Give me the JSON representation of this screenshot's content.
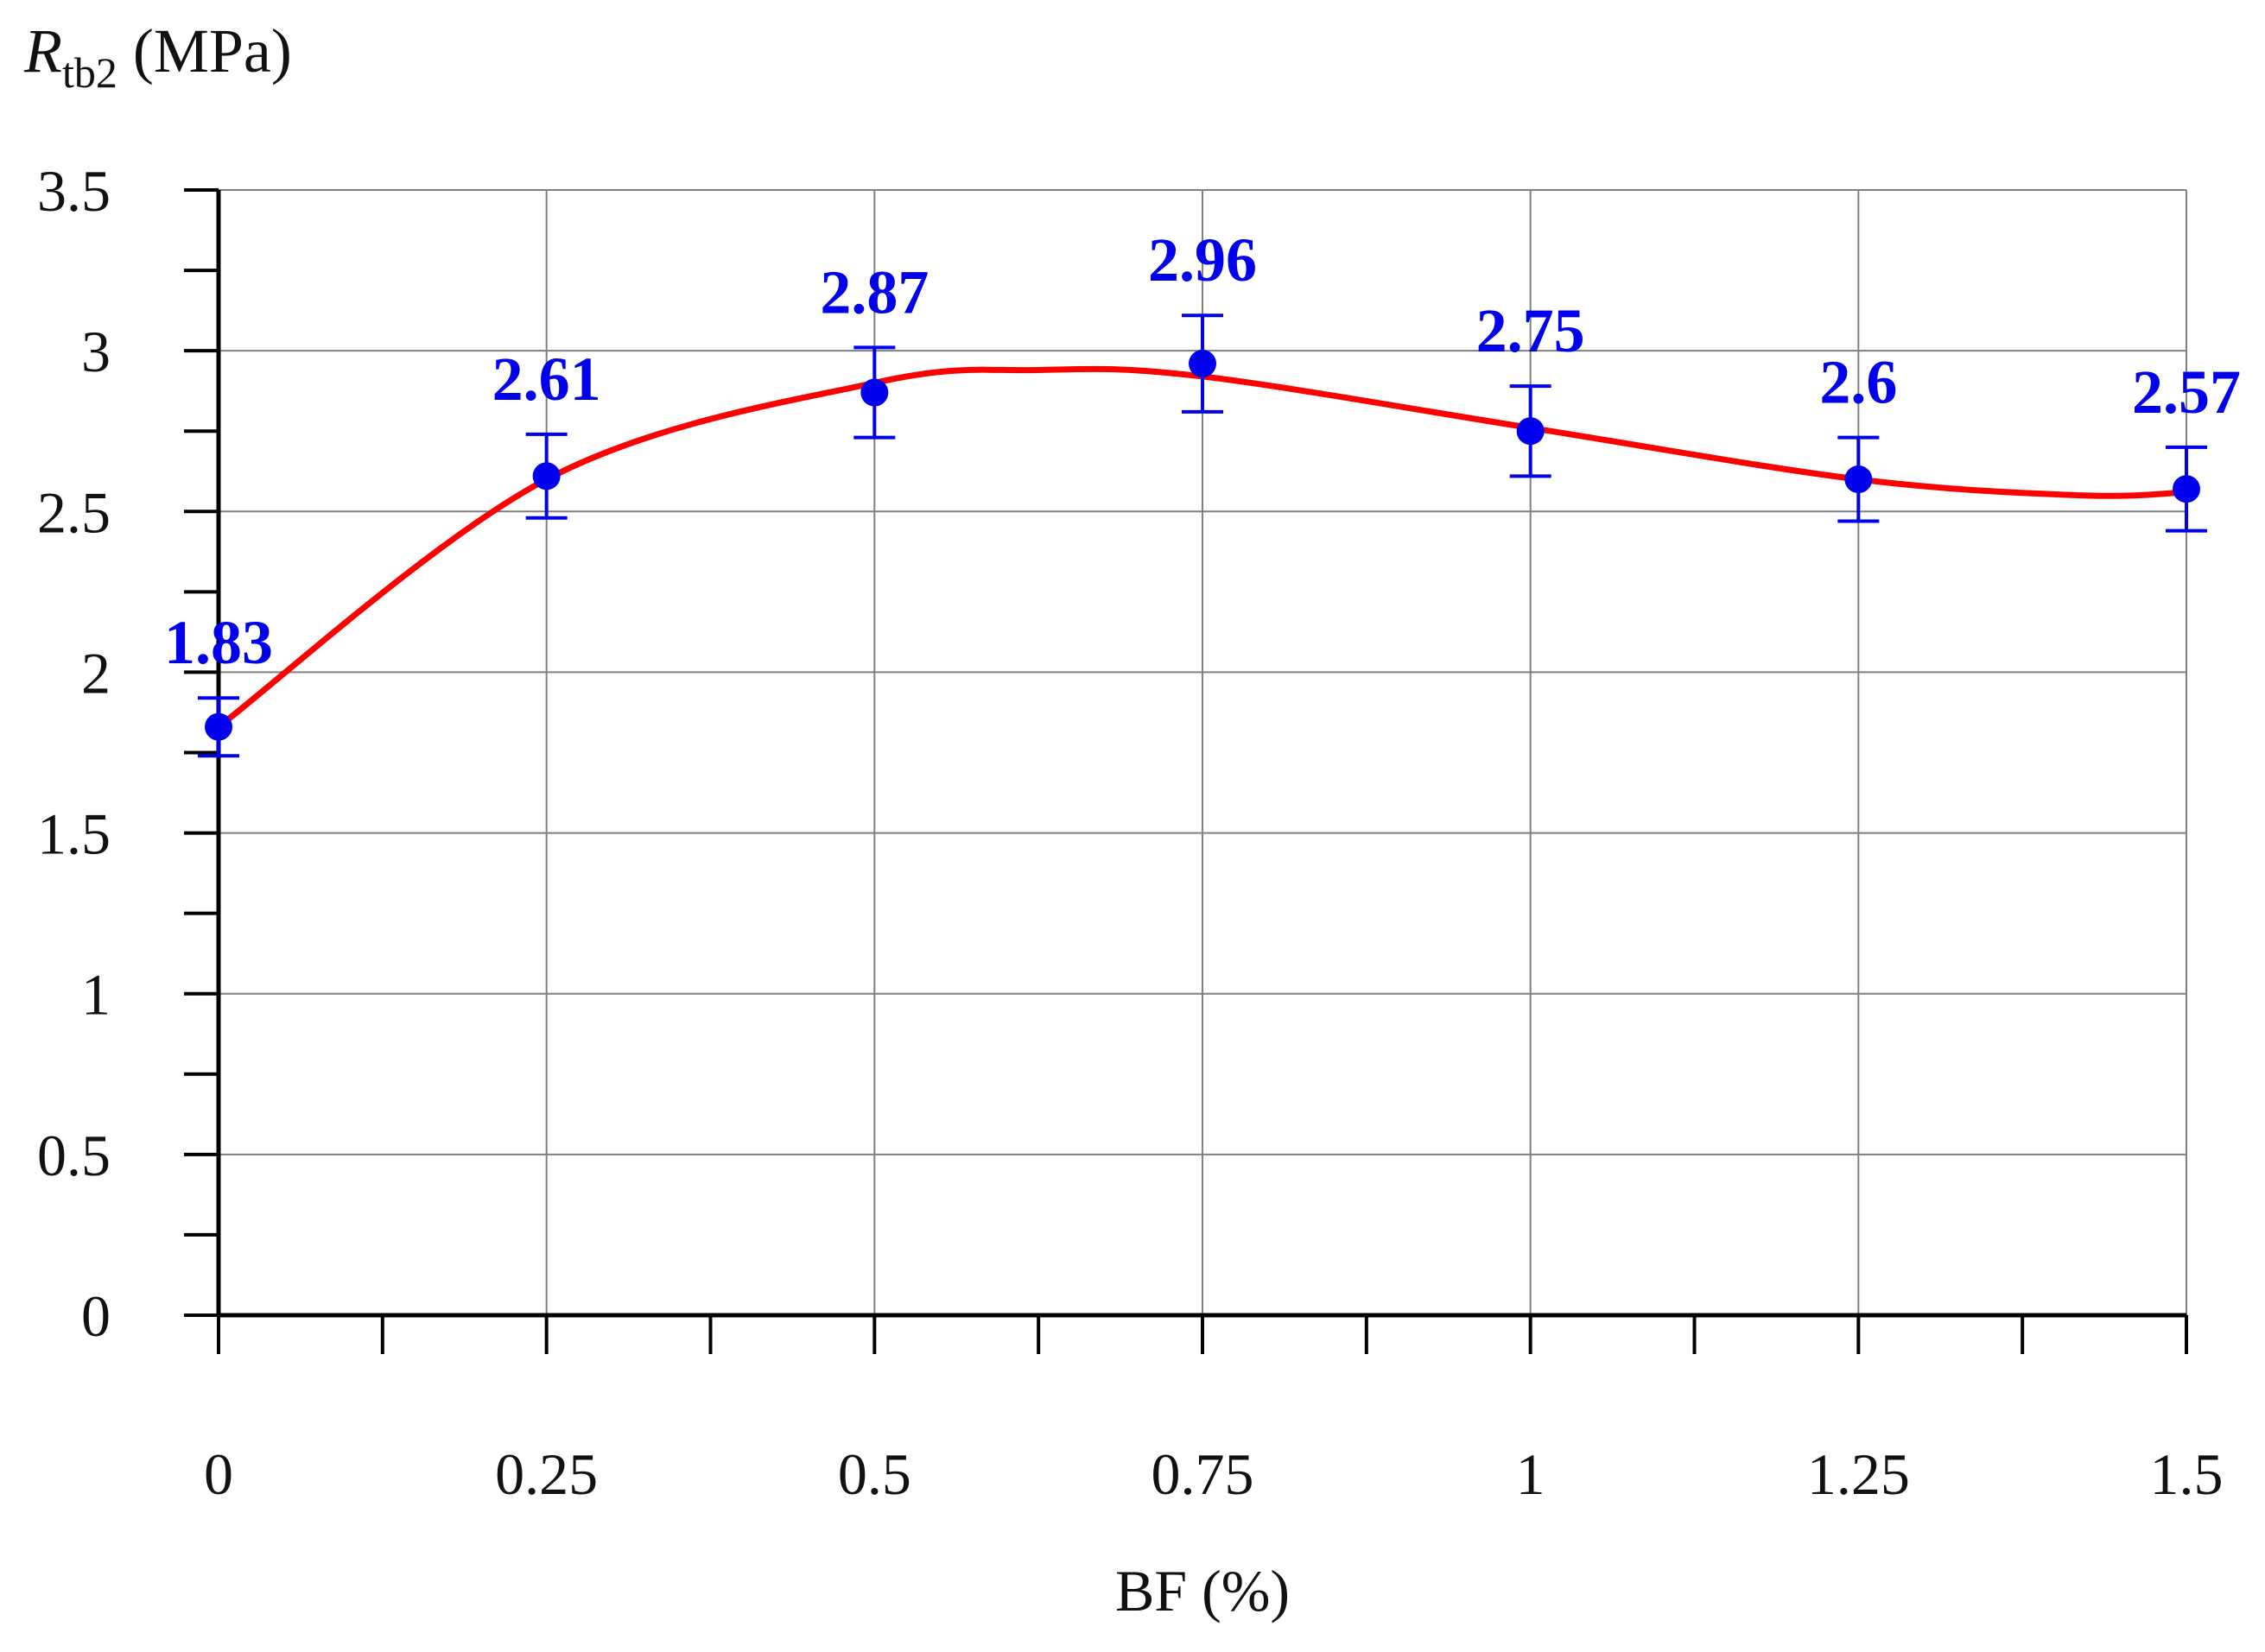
{
  "chart_data": {
    "type": "scatter",
    "ylabel": {
      "symbol": "R",
      "subscript": "tb2",
      "unit": " (MPa)"
    },
    "xlabel": "BF (%)",
    "x_ticks": [
      "0",
      "0.25",
      "0.5",
      "0.75",
      "1",
      "1.25",
      "1.5"
    ],
    "y_ticks": [
      "0",
      "0.5",
      "1",
      "1.5",
      "2",
      "2.5",
      "3",
      "3.5"
    ],
    "xlim": [
      0,
      1.5
    ],
    "ylim": [
      0,
      3.5
    ],
    "grid": true,
    "series": [
      {
        "x": [
          0,
          0.25,
          0.5,
          0.75,
          1.0,
          1.25,
          1.5
        ],
        "y": [
          1.83,
          2.61,
          2.87,
          2.96,
          2.75,
          2.6,
          2.57
        ],
        "labels": [
          "1.83",
          "2.61",
          "2.87",
          "2.96",
          "2.75",
          "2.6",
          "2.57"
        ],
        "error_low": [
          0.09,
          0.13,
          0.14,
          0.15,
          0.14,
          0.13,
          0.13
        ],
        "error_high": [
          0.09,
          0.13,
          0.14,
          0.15,
          0.14,
          0.13,
          0.13
        ],
        "color": "#0000ee"
      }
    ],
    "trend_curve": {
      "color": "#ff0000",
      "x": [
        0,
        0.25,
        0.5,
        0.625,
        0.75,
        1.0,
        1.25,
        1.42,
        1.5
      ],
      "y": [
        1.83,
        2.6,
        2.9,
        2.94,
        2.92,
        2.76,
        2.6,
        2.55,
        2.56
      ]
    }
  }
}
